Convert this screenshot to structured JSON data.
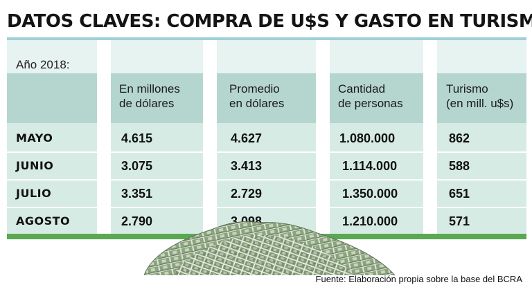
{
  "title": "DATOS CLAVES: COMPRA DE U$S Y GASTO EN TURISMO",
  "year_label": "Año 2018:",
  "columns": [
    {
      "line1": "En millones",
      "line2": "de dólares"
    },
    {
      "line1": "Promedio",
      "line2": "en dólares"
    },
    {
      "line1": "Cantidad",
      "line2": "de personas"
    },
    {
      "line1": "Turismo",
      "line2": "(en mill. u$s)"
    }
  ],
  "rows": [
    {
      "month": "MAYO",
      "c1": "4.615",
      "c2": "4.627",
      "c3": "1.080.000",
      "c4": "862"
    },
    {
      "month": "JUNIO",
      "c1": "3.075",
      "c2": "3.413",
      "c3": "1.114.000",
      "c4": "588"
    },
    {
      "month": "JULIO",
      "c1": "3.351",
      "c2": "2.729",
      "c3": "1.350.000",
      "c4": "651"
    },
    {
      "month": "AGOSTO",
      "c1": "2.790",
      "c2": "3.098",
      "c3": "1.210.000",
      "c4": "571"
    }
  ],
  "source": "Fuente: Elaboración propia sobre la base del BCRA",
  "colors": {
    "title_rule": "#9fd0d8",
    "header_band": "#b5d6cf",
    "body_band": "#d7ebe5",
    "green_strip": "#5aa851",
    "money": "#7f9a74"
  },
  "illustration": "money-pile-icon"
}
